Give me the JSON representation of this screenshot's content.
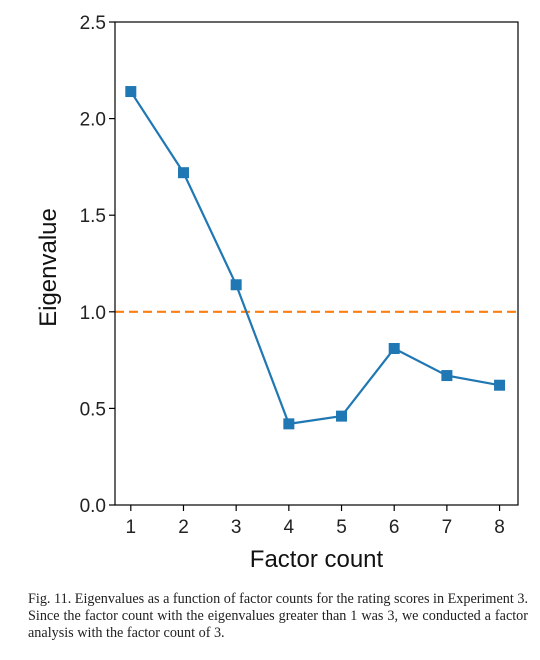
{
  "chart_data": {
    "type": "line",
    "xlabel": "Factor count",
    "ylabel": "Eigenvalue",
    "x": [
      1,
      2,
      3,
      4,
      5,
      6,
      7,
      8
    ],
    "series": [
      {
        "values": [
          2.14,
          1.72,
          1.14,
          0.42,
          0.46,
          0.81,
          0.67,
          0.62
        ],
        "color": "#1f77b4",
        "marker": "square"
      }
    ],
    "reference_line": {
      "y": 1.0,
      "style": "dashed",
      "color": "#ff7f0e"
    },
    "xticks": [
      "1",
      "2",
      "3",
      "4",
      "5",
      "6",
      "7",
      "8"
    ],
    "yticks": [
      "0.0",
      "0.5",
      "1.0",
      "1.5",
      "2.0",
      "2.5"
    ],
    "xlim": [
      0.7,
      8.35
    ],
    "ylim": [
      0.0,
      2.5
    ],
    "grid": false
  },
  "caption": "Fig. 11.   Eigenvalues as a function of factor counts for the rating scores in Experiment 3. Since the factor count with the eigenvalues greater than 1 was 3, we conducted a factor analysis with the factor count of 3."
}
